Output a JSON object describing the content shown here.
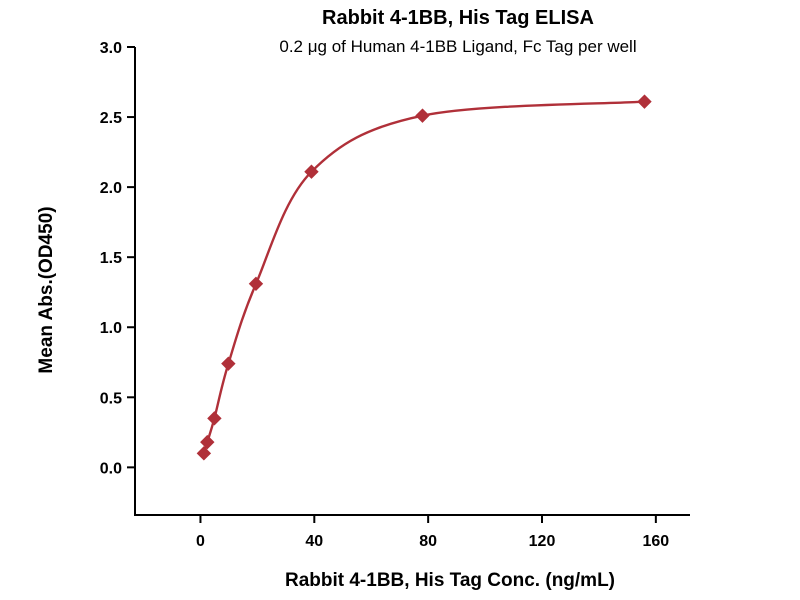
{
  "chart_data": {
    "type": "scatter",
    "title": "Rabbit 4-1BB, His Tag ELISA",
    "subtitle": "0.2 μg of Human 4-1BB Ligand, Fc Tag per well",
    "xlabel": "Rabbit 4-1BB, His Tag Conc. (ng/mL)",
    "ylabel": "Mean Abs.(OD450)",
    "x": [
      1.2,
      2.4,
      4.9,
      9.8,
      19.5,
      39,
      78,
      156
    ],
    "y": [
      0.1,
      0.18,
      0.35,
      0.74,
      1.31,
      2.11,
      2.51,
      2.61
    ],
    "x_ticks": [
      0,
      40,
      80,
      120,
      160
    ],
    "y_ticks": [
      0.0,
      0.5,
      1.0,
      1.5,
      2.0,
      2.5,
      3.0
    ],
    "xlim": [
      -23,
      172
    ],
    "ylim": [
      -0.34,
      3.0
    ],
    "marker": "diamond",
    "line": "smooth-fit",
    "color": "#B03039",
    "axis_color": "#000000",
    "grid": false,
    "legend": "none"
  }
}
